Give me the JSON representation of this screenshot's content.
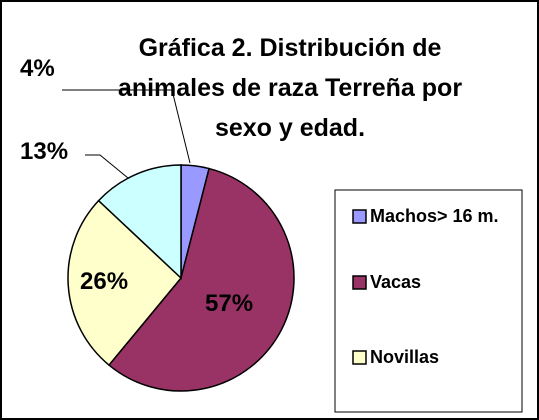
{
  "chart_data": {
    "type": "pie",
    "title": "Gráfica 2. Distribución de animales de raza Terreña por sexo y edad.",
    "categories": [
      "Machos> 16 m.",
      "Vacas",
      "Novillas",
      null
    ],
    "values": [
      4,
      57,
      26,
      13
    ],
    "value_labels": [
      "4%",
      "57%",
      "26%",
      "13%"
    ],
    "colors": [
      "#9999ff",
      "#993366",
      "#ffffcc",
      "#ccffff"
    ]
  }
}
